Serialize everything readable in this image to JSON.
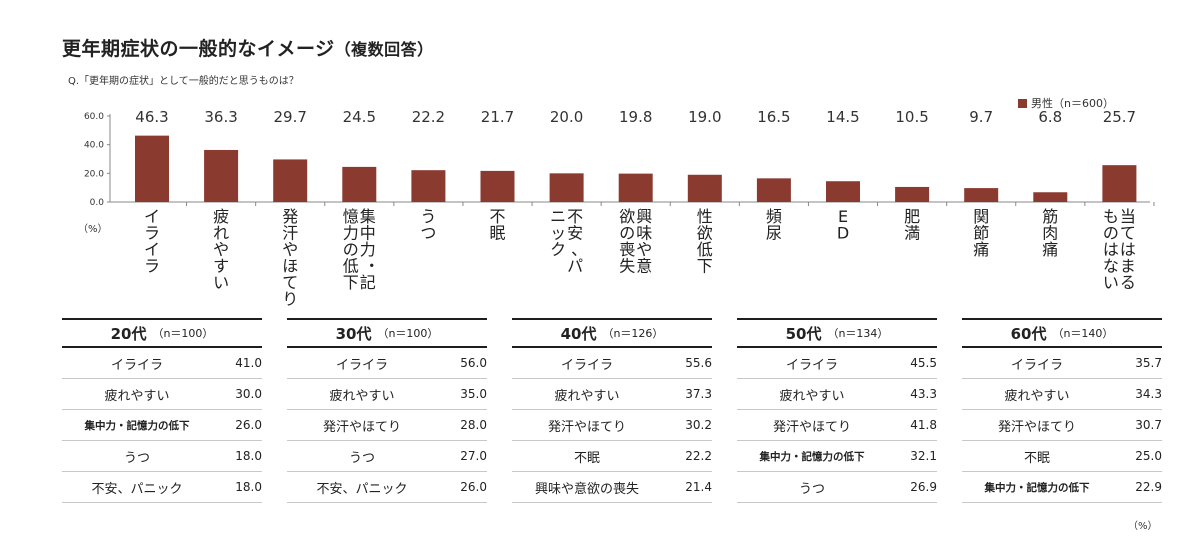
{
  "title": "更年期症状の一般的なイメージ",
  "title_note": "（複数回答）",
  "question": "Q.「更年期の症状」として一般的だと思うものは？",
  "chart_data": {
    "type": "bar",
    "categories": [
      "イライラ",
      "疲れやすい",
      "発汗やほてり",
      "集中力・記憶力の低下",
      "うつ",
      "不眠",
      "不安、パニック",
      "興味や意欲の喪失",
      "性欲低下",
      "頻尿",
      "ED",
      "肥満",
      "関節痛",
      "筋肉痛",
      "当てはまるものはない"
    ],
    "series": [
      {
        "name": "男性（n＝600）",
        "values": [
          46.3,
          36.3,
          29.7,
          24.5,
          22.2,
          21.7,
          20.0,
          19.8,
          19.0,
          16.5,
          14.5,
          10.5,
          9.7,
          6.8,
          25.7
        ]
      }
    ],
    "value_labels": [
      "46.3",
      "36.3",
      "29.7",
      "24.5",
      "22.2",
      "21.7",
      "20.0",
      "19.8",
      "19.0",
      "16.5",
      "14.5",
      "10.5",
      "9.7",
      "6.8",
      "25.7"
    ],
    "yticks": [
      "0.0",
      "20.0",
      "40.0",
      "60.0"
    ],
    "ylim": [
      0,
      60
    ],
    "unit_label": "（%）",
    "color": "#8b3a2f",
    "legend_position": "top-right",
    "grid": false
  },
  "tables": [
    {
      "age": "20代",
      "n": "（n＝100）",
      "rows": [
        {
          "label": "イライラ",
          "value": "41.0"
        },
        {
          "label": "疲れやすい",
          "value": "30.0"
        },
        {
          "label": "集中力・記憶力の低下",
          "value": "26.0",
          "small": true
        },
        {
          "label": "うつ",
          "value": "18.0"
        },
        {
          "label": "不安、パニック",
          "value": "18.0"
        }
      ]
    },
    {
      "age": "30代",
      "n": "（n＝100）",
      "rows": [
        {
          "label": "イライラ",
          "value": "56.0"
        },
        {
          "label": "疲れやすい",
          "value": "35.0"
        },
        {
          "label": "発汗やほてり",
          "value": "28.0"
        },
        {
          "label": "うつ",
          "value": "27.0"
        },
        {
          "label": "不安、パニック",
          "value": "26.0"
        }
      ]
    },
    {
      "age": "40代",
      "n": "（n＝126）",
      "rows": [
        {
          "label": "イライラ",
          "value": "55.6"
        },
        {
          "label": "疲れやすい",
          "value": "37.3"
        },
        {
          "label": "発汗やほてり",
          "value": "30.2"
        },
        {
          "label": "不眠",
          "value": "22.2"
        },
        {
          "label": "興味や意欲の喪失",
          "value": "21.4"
        }
      ]
    },
    {
      "age": "50代",
      "n": "（n＝134）",
      "rows": [
        {
          "label": "イライラ",
          "value": "45.5"
        },
        {
          "label": "疲れやすい",
          "value": "43.3"
        },
        {
          "label": "発汗やほてり",
          "value": "41.8"
        },
        {
          "label": "集中力・記憶力の低下",
          "value": "32.1",
          "small": true
        },
        {
          "label": "うつ",
          "value": "26.9"
        }
      ]
    },
    {
      "age": "60代",
      "n": "（n＝140）",
      "rows": [
        {
          "label": "イライラ",
          "value": "35.7"
        },
        {
          "label": "疲れやすい",
          "value": "34.3"
        },
        {
          "label": "発汗やほてり",
          "value": "30.7"
        },
        {
          "label": "不眠",
          "value": "25.0"
        },
        {
          "label": "集中力・記憶力の低下",
          "value": "22.9",
          "small": true
        }
      ]
    }
  ],
  "table_unit": "（%）"
}
